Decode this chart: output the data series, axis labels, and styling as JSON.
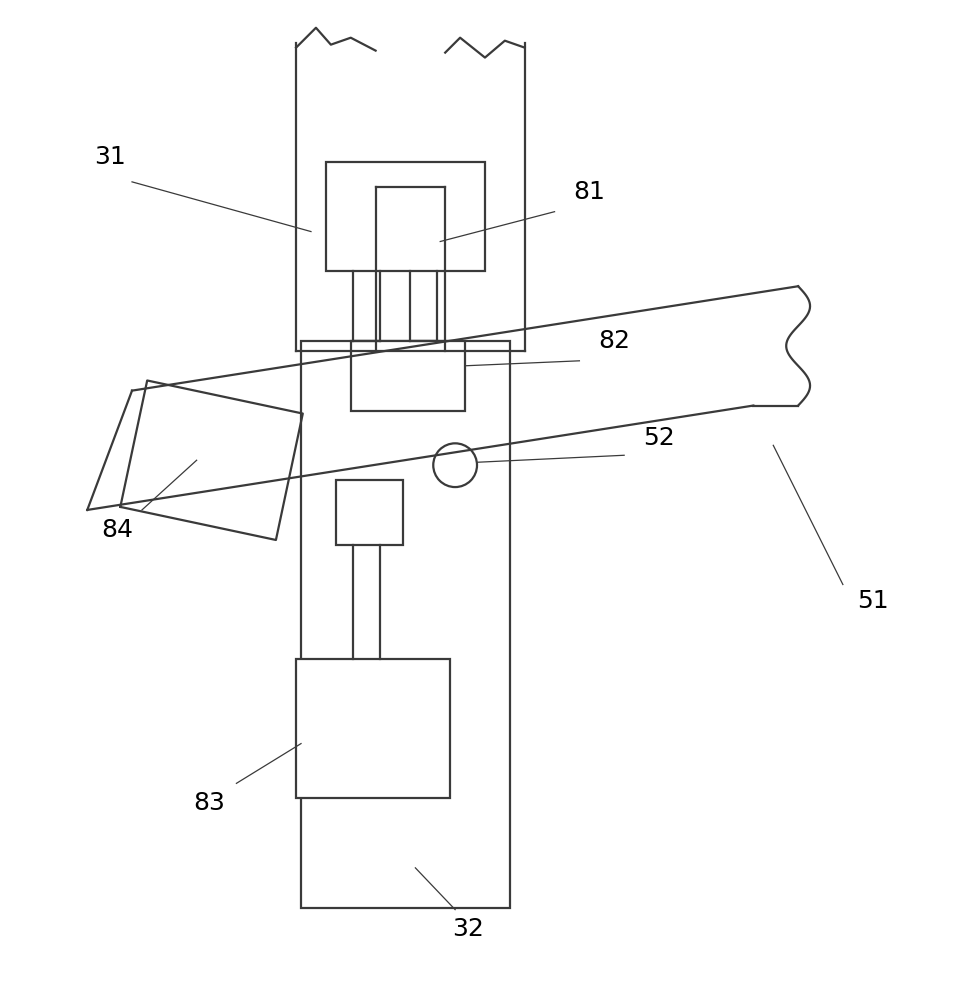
{
  "bg_color": "#ffffff",
  "line_color": "#3a3a3a",
  "line_width": 1.6,
  "font_size": 18
}
